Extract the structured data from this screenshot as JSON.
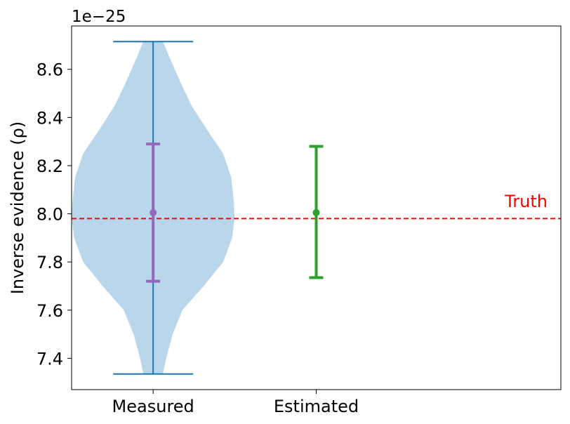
{
  "chart_data": {
    "type": "violin",
    "scale_label": "1e−25",
    "ylabel": "Inverse evidence (ρ)",
    "ylim": [
      7.27,
      8.78
    ],
    "yticks": [
      7.4,
      7.6,
      7.8,
      8.0,
      8.2,
      8.4,
      8.6
    ],
    "ytick_labels": [
      "7.4",
      "7.6",
      "7.8",
      "8.0",
      "8.2",
      "8.4",
      "8.6"
    ],
    "xlim": [
      0.5,
      3.5
    ],
    "categories": [
      "Measured",
      "Estimated"
    ],
    "violin": {
      "category": "Measured",
      "x": 1,
      "min": 7.335,
      "max": 8.715,
      "density": [
        [
          7.335,
          0.12
        ],
        [
          7.4,
          0.16
        ],
        [
          7.5,
          0.24
        ],
        [
          7.6,
          0.36
        ],
        [
          7.7,
          0.62
        ],
        [
          7.8,
          0.86
        ],
        [
          7.9,
          0.97
        ],
        [
          7.98,
          1.0
        ],
        [
          8.05,
          0.99
        ],
        [
          8.15,
          0.96
        ],
        [
          8.25,
          0.86
        ],
        [
          8.35,
          0.66
        ],
        [
          8.45,
          0.47
        ],
        [
          8.55,
          0.33
        ],
        [
          8.65,
          0.2
        ],
        [
          8.715,
          0.12
        ]
      ],
      "color": "#bad6ea",
      "line_color": "#1f77b4"
    },
    "errorbars": [
      {
        "category": "Measured",
        "x": 1,
        "center": 8.005,
        "low": 7.72,
        "high": 8.29,
        "color": "#9467bd"
      },
      {
        "category": "Estimated",
        "x": 2,
        "center": 8.005,
        "low": 7.735,
        "high": 8.28,
        "color": "#2ca02c"
      }
    ],
    "reference_line": {
      "value": 7.98,
      "label": "Truth",
      "color": "#ff0000",
      "style": "dashed"
    }
  }
}
